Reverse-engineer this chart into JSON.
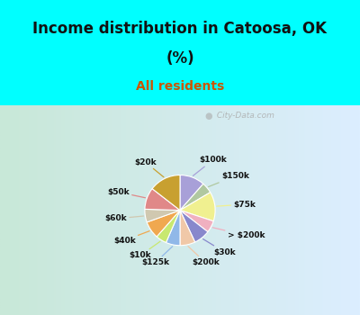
{
  "title_line1": "Income distribution in Catoosa, OK",
  "title_line2": "(%)",
  "subtitle": "All residents",
  "title_color": "#111111",
  "subtitle_color": "#cc5500",
  "background_cyan": "#00ffff",
  "slices": [
    {
      "label": "$100k",
      "value": 11.5,
      "color": "#a8a0d8"
    },
    {
      "label": "$150k",
      "value": 5.0,
      "color": "#b0c8a0"
    },
    {
      "label": "$75k",
      "value": 13.5,
      "color": "#f0f090"
    },
    {
      "label": "> $200k",
      "value": 5.5,
      "color": "#f0b0c0"
    },
    {
      "label": "$30k",
      "value": 7.5,
      "color": "#8888cc"
    },
    {
      "label": "$200k",
      "value": 7.0,
      "color": "#f0c8a8"
    },
    {
      "label": "$125k",
      "value": 6.5,
      "color": "#90b8e8"
    },
    {
      "label": "$10k",
      "value": 5.0,
      "color": "#c8e870"
    },
    {
      "label": "$40k",
      "value": 8.0,
      "color": "#f0a850"
    },
    {
      "label": "$60k",
      "value": 6.0,
      "color": "#d0c8b0"
    },
    {
      "label": "$50k",
      "value": 10.0,
      "color": "#e08888"
    },
    {
      "label": "$20k",
      "value": 14.5,
      "color": "#c8a030"
    }
  ],
  "watermark": " City-Data.com",
  "chart_bg_left": "#c8e8d8",
  "chart_bg_right": "#ddeeff"
}
